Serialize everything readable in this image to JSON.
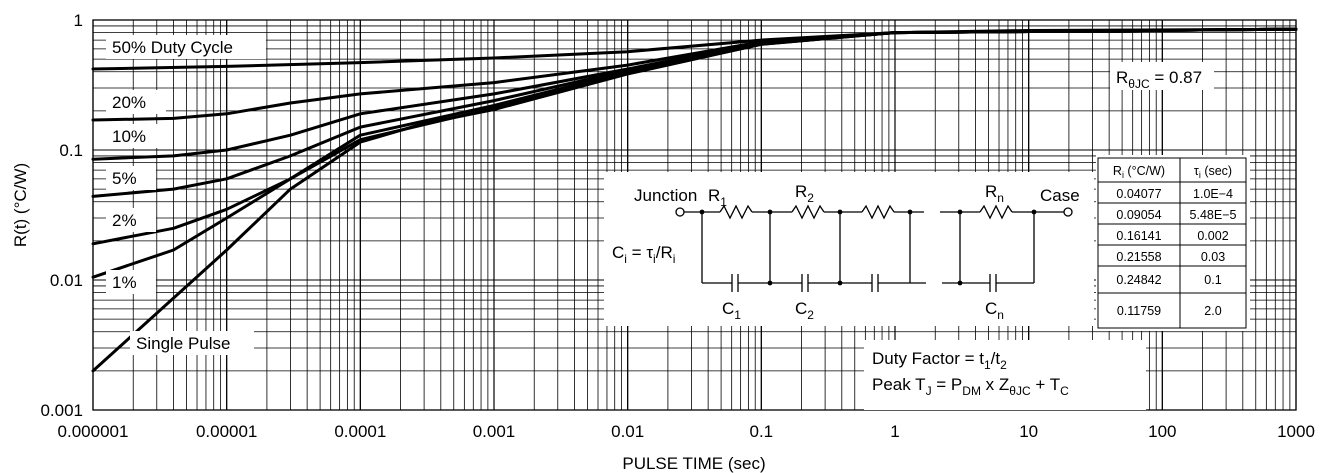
{
  "chart_data": {
    "type": "line",
    "title": "",
    "xlabel": "PULSE TIME (sec)",
    "ylabel": "R(t) (°C/W)",
    "xscale": "log",
    "yscale": "log",
    "xlim": [
      1e-06,
      1000
    ],
    "ylim": [
      0.001,
      1
    ],
    "grid": true,
    "x_tick_labels": [
      "0.000001",
      "0.00001",
      "0.0001",
      "0.001",
      "0.01",
      "0.1",
      "1",
      "10",
      "100",
      "1000"
    ],
    "y_tick_labels": [
      "0.001",
      "0.01",
      "0.1",
      "1"
    ],
    "series": [
      {
        "name": "50% Duty Cycle",
        "points": [
          [
            1e-06,
            0.42
          ],
          [
            1e-05,
            0.44
          ],
          [
            0.0001,
            0.47
          ],
          [
            0.001,
            0.51
          ],
          [
            0.01,
            0.57
          ],
          [
            0.1,
            0.7
          ],
          [
            1,
            0.8
          ],
          [
            10,
            0.83
          ],
          [
            1000,
            0.85
          ]
        ]
      },
      {
        "name": "20%",
        "points": [
          [
            1e-06,
            0.17
          ],
          [
            4e-06,
            0.175
          ],
          [
            1e-05,
            0.19
          ],
          [
            3e-05,
            0.23
          ],
          [
            0.0001,
            0.27
          ],
          [
            0.001,
            0.33
          ],
          [
            0.01,
            0.45
          ],
          [
            0.1,
            0.68
          ],
          [
            1,
            0.8
          ],
          [
            1000,
            0.85
          ]
        ]
      },
      {
        "name": "10%",
        "points": [
          [
            1e-06,
            0.085
          ],
          [
            4e-06,
            0.09
          ],
          [
            1e-05,
            0.1
          ],
          [
            3e-05,
            0.13
          ],
          [
            0.0001,
            0.19
          ],
          [
            0.001,
            0.27
          ],
          [
            0.01,
            0.42
          ],
          [
            0.1,
            0.67
          ],
          [
            1,
            0.8
          ],
          [
            1000,
            0.85
          ]
        ]
      },
      {
        "name": "5%",
        "points": [
          [
            1e-06,
            0.044
          ],
          [
            4e-06,
            0.05
          ],
          [
            1e-05,
            0.06
          ],
          [
            3e-05,
            0.09
          ],
          [
            0.0001,
            0.15
          ],
          [
            0.001,
            0.24
          ],
          [
            0.01,
            0.41
          ],
          [
            0.1,
            0.66
          ],
          [
            1,
            0.8
          ],
          [
            1000,
            0.85
          ]
        ]
      },
      {
        "name": "2%",
        "points": [
          [
            1e-06,
            0.019
          ],
          [
            4e-06,
            0.025
          ],
          [
            1e-05,
            0.035
          ],
          [
            3e-05,
            0.06
          ],
          [
            0.0001,
            0.13
          ],
          [
            0.001,
            0.22
          ],
          [
            0.01,
            0.4
          ],
          [
            0.1,
            0.66
          ],
          [
            1,
            0.8
          ],
          [
            1000,
            0.85
          ]
        ]
      },
      {
        "name": "1%",
        "points": [
          [
            1e-06,
            0.0105
          ],
          [
            4e-06,
            0.017
          ],
          [
            1e-05,
            0.03
          ],
          [
            3e-05,
            0.06
          ],
          [
            0.0001,
            0.12
          ],
          [
            0.001,
            0.21
          ],
          [
            0.01,
            0.39
          ],
          [
            0.1,
            0.65
          ],
          [
            1,
            0.8
          ],
          [
            1000,
            0.85
          ]
        ]
      },
      {
        "name": "Single Pulse",
        "points": [
          [
            1e-06,
            0.002
          ],
          [
            1e-05,
            0.017
          ],
          [
            3e-05,
            0.05
          ],
          [
            0.0001,
            0.115
          ],
          [
            0.0003,
            0.16
          ],
          [
            0.001,
            0.205
          ],
          [
            0.01,
            0.385
          ],
          [
            0.1,
            0.65
          ],
          [
            1,
            0.8
          ],
          [
            1000,
            0.85
          ]
        ]
      }
    ],
    "annotations": {
      "rth_jc": {
        "prefix": "R",
        "sub": "θJC",
        "suffix": " = 0.87"
      },
      "duty_factor": {
        "text": "Duty Factor = t",
        "s1": "1",
        "mid": "/t",
        "s2": "2"
      },
      "peak_tj": {
        "a": "Peak T",
        "s1": "J",
        "b": " = P",
        "s2": "DM",
        "c": " x Z",
        "s3": "θJC",
        "d": " + T",
        "s4": "C"
      }
    },
    "rc_table": {
      "header_r": {
        "main": "R",
        "sub": "i",
        "rest": " (°C/W)"
      },
      "header_tau": {
        "main": "τ",
        "sub": "i",
        "rest": " (sec)"
      },
      "rows": [
        [
          "0.04077",
          "1.0E−4"
        ],
        [
          "0.09054",
          "5.48E−5"
        ],
        [
          "0.16141",
          "0.002"
        ],
        [
          "0.21558",
          "0.03"
        ],
        [
          "0.24842",
          "0.1"
        ],
        [
          "0.11759",
          "2.0"
        ]
      ]
    },
    "network": {
      "junction": "Junction",
      "case": "Case",
      "r_letter": "R",
      "c_letter": "C",
      "r1_sub": "1",
      "r2_sub": "2",
      "rn_sub": "n",
      "c1_sub": "1",
      "c2_sub": "2",
      "cn_sub": "n",
      "ci_eq": {
        "a": "C",
        "s1": "i",
        "b": " = τ",
        "s2": "i",
        "c": "/R",
        "s3": "i"
      }
    }
  }
}
